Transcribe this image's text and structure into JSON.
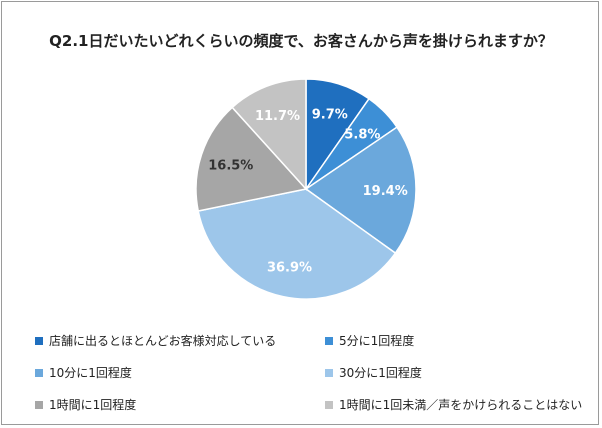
{
  "chart_data": {
    "type": "pie",
    "title": "Q2.1日だいたいどれくらいの頻度で、お客さんから声を掛けられますか？",
    "categories": [
      "店舗に出るとほとんどお客様対応している",
      "5分に1回程度",
      "10分に1回程度",
      "30分に1回程度",
      "1時間に1回程度",
      "1時間に1回未満／声をかけられることはない"
    ],
    "values": [
      9.7,
      5.8,
      19.4,
      36.9,
      16.5,
      11.7
    ],
    "data_labels": [
      "9.7%",
      "5.8%",
      "19.4%",
      "36.9%",
      "16.5%",
      "11.7%"
    ],
    "colors": [
      "#1f6fbf",
      "#3d8fd6",
      "#6ba8dc",
      "#9dc6ea",
      "#a6a6a6",
      "#c3c3c3"
    ],
    "label_colors": [
      "#ffffff",
      "#ffffff",
      "#ffffff",
      "#ffffff",
      "#333333",
      "#ffffff"
    ],
    "legend_position": "bottom"
  }
}
